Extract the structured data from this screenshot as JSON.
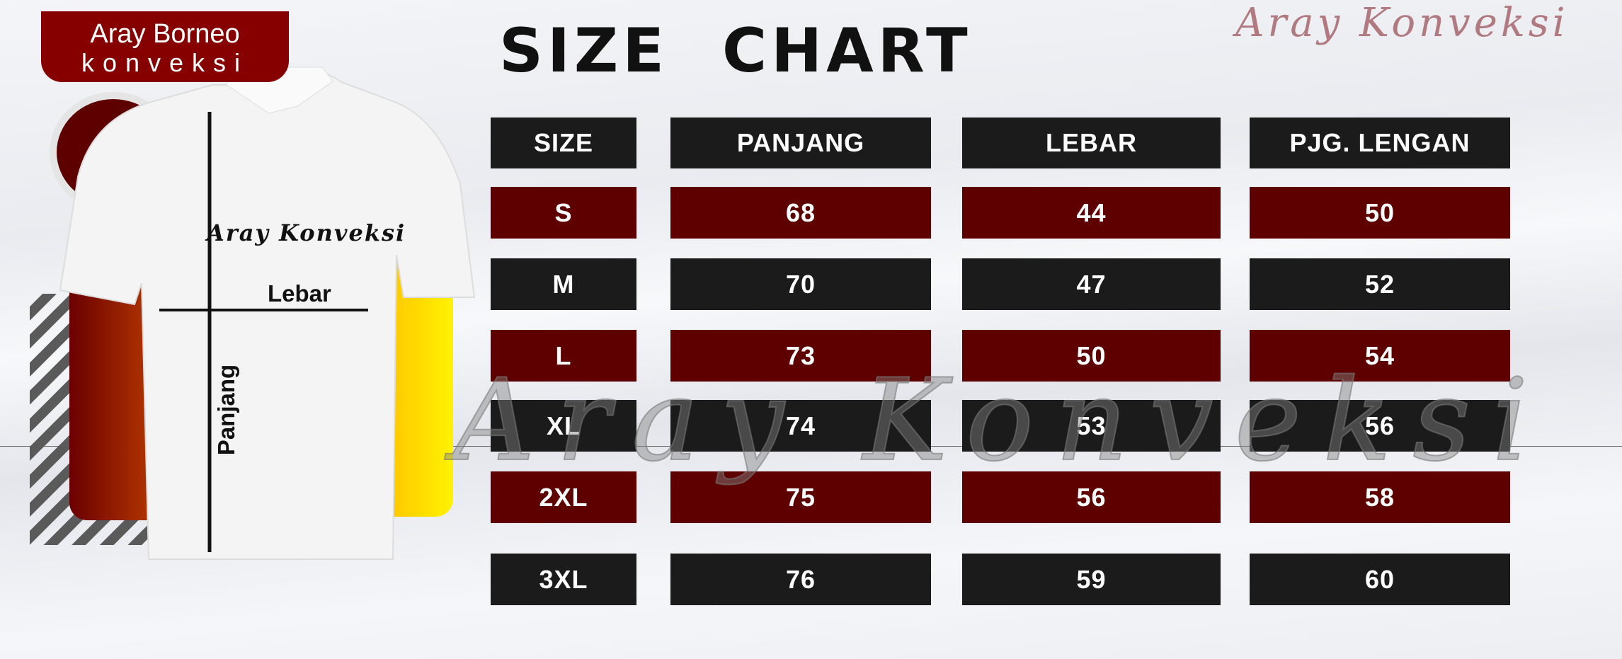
{
  "title": "SIZE CHART",
  "brand": "Aray Konveksi",
  "logo": {
    "line1": "Aray Borneo",
    "line2": "konveksi"
  },
  "shirt": {
    "print": "Aray Konveksi",
    "width_label": "Lebar",
    "length_label": "Panjang"
  },
  "watermark": "Aray Konveksi",
  "colors": {
    "header": "#1b1b1b",
    "accent_red": "#5e0000",
    "brand": "#b07a80",
    "yellow": "#ffd500"
  },
  "table": {
    "headers": [
      "SIZE",
      "PANJANG",
      "LEBAR",
      "PJG. LENGAN"
    ],
    "rows": [
      [
        "S",
        "68",
        "44",
        "50"
      ],
      [
        "M",
        "70",
        "47",
        "52"
      ],
      [
        "L",
        "73",
        "50",
        "54"
      ],
      [
        "XL",
        "74",
        "53",
        "56"
      ],
      [
        "2XL",
        "75",
        "56",
        "58"
      ],
      [
        "3XL",
        "76",
        "59",
        "60"
      ]
    ]
  }
}
